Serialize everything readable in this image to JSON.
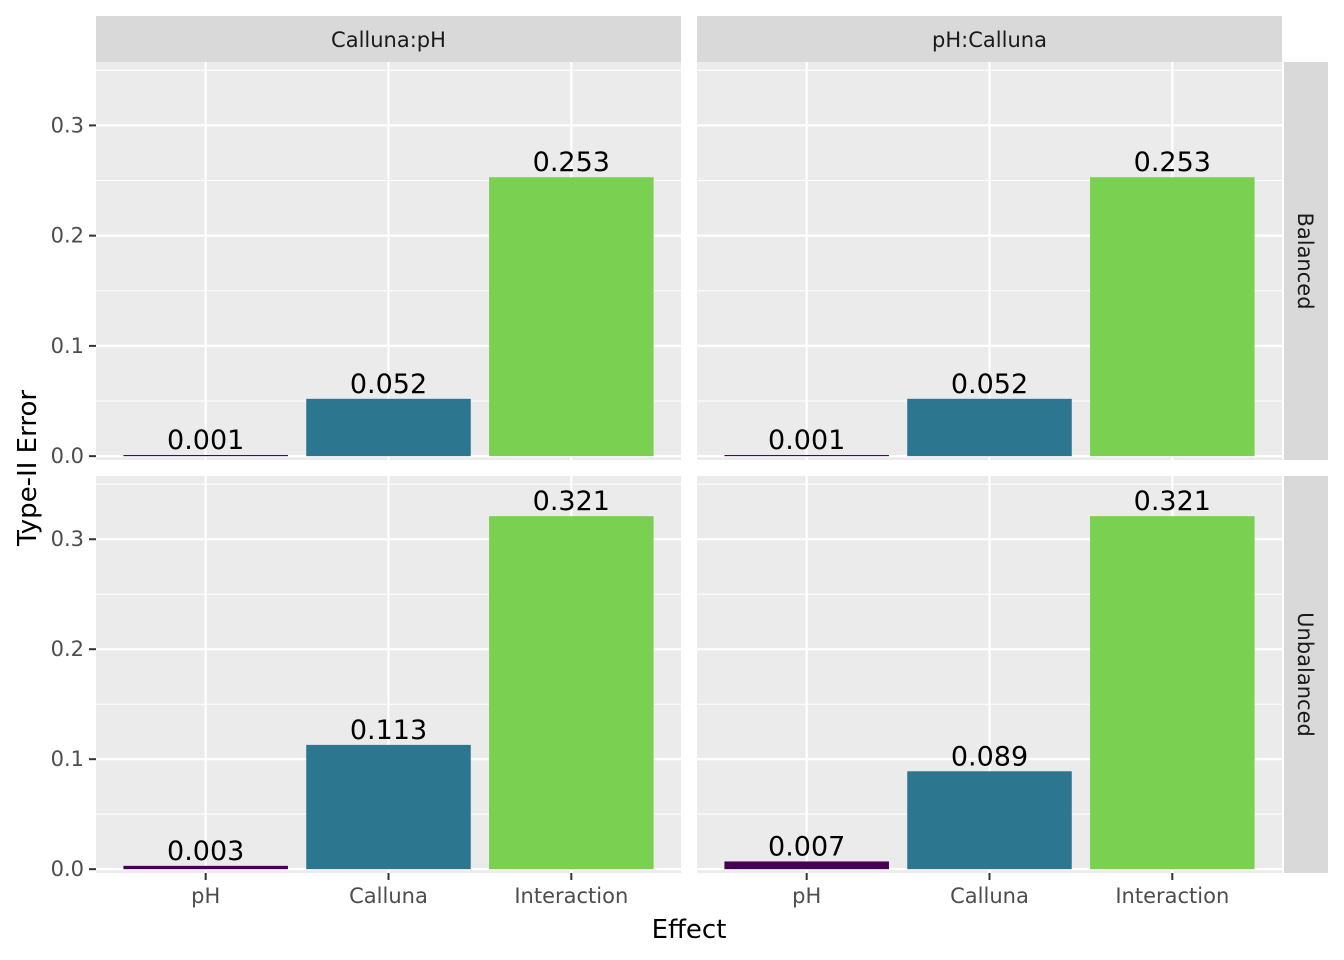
{
  "chart_data": {
    "type": "bar",
    "xlabel": "Effect",
    "ylabel": "Type-II Error",
    "categories": [
      "pH",
      "Calluna",
      "Interaction"
    ],
    "colors": {
      "pH": "#440154",
      "Calluna": "#2C778F",
      "Interaction": "#7AD151"
    },
    "panel_background": "#EBEBEB",
    "strip_background": "#D9D9D9",
    "grid": true,
    "columns": [
      "Calluna:pH",
      "pH:Calluna"
    ],
    "rows": [
      "Balanced",
      "Unbalanced"
    ],
    "ylim": [
      -0.0035,
      0.3575
    ],
    "yticks": [
      0.0,
      0.1,
      0.2,
      0.3
    ],
    "ytick_labels": [
      "0.0",
      "0.1",
      "0.2",
      "0.3"
    ],
    "panels": [
      {
        "column": "Calluna:pH",
        "row": "Balanced",
        "values": [
          0.001,
          0.052,
          0.253
        ],
        "labels": [
          "0.001",
          "0.052",
          "0.253"
        ]
      },
      {
        "column": "pH:Calluna",
        "row": "Balanced",
        "values": [
          0.001,
          0.052,
          0.253
        ],
        "labels": [
          "0.001",
          "0.052",
          "0.253"
        ]
      },
      {
        "column": "Calluna:pH",
        "row": "Unbalanced",
        "values": [
          0.003,
          0.113,
          0.321
        ],
        "labels": [
          "0.003",
          "0.113",
          "0.321"
        ]
      },
      {
        "column": "pH:Calluna",
        "row": "Unbalanced",
        "values": [
          0.007,
          0.089,
          0.321
        ],
        "labels": [
          "0.007",
          "0.089",
          "0.321"
        ]
      }
    ]
  }
}
